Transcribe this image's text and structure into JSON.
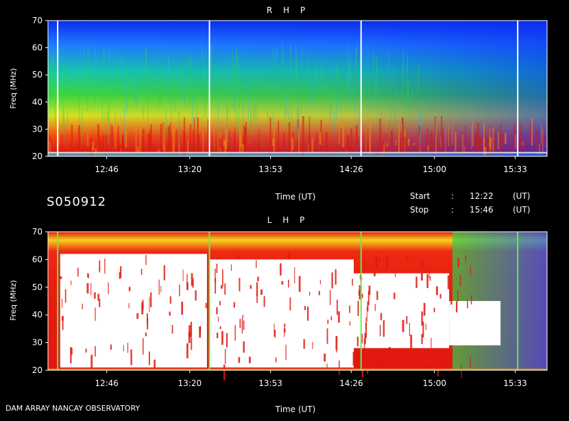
{
  "chart_data": [
    {
      "type": "heatmap",
      "title": "R H P",
      "xlabel": "Time (UT)",
      "ylabel": "Freq (MHz)",
      "x_ticks": [
        "12:46",
        "13:20",
        "13:53",
        "14:26",
        "15:00",
        "15:33"
      ],
      "x_tick_hours": [
        12.767,
        13.333,
        13.883,
        14.433,
        15.0,
        15.55
      ],
      "xlim_hours": [
        12.367,
        15.767
      ],
      "ylim": [
        20,
        70
      ],
      "y_ticks": [
        20,
        30,
        40,
        50,
        60,
        70
      ],
      "white_marker_hours": [
        12.433,
        13.467,
        14.5,
        15.567
      ],
      "colors": {
        "background": "#0033ee",
        "low": "#1a66ff",
        "mid": "#22cc66",
        "high": "#ffee22",
        "peak": "#ee2211"
      },
      "profile_bands": [
        {
          "freq": [
            66,
            70
          ],
          "level": 0.1
        },
        {
          "freq": [
            55,
            66
          ],
          "level": 0.3
        },
        {
          "freq": [
            45,
            55
          ],
          "level": 0.45
        },
        {
          "freq": [
            36,
            45
          ],
          "level": 0.6
        },
        {
          "freq": [
            22,
            36
          ],
          "level": 0.85
        }
      ]
    },
    {
      "type": "heatmap",
      "title": "L H P",
      "xlabel": "Time (UT)",
      "ylabel": "Freq (MHz)",
      "x_ticks": [
        "12:46",
        "13:20",
        "13:53",
        "14:26",
        "15:00",
        "15:33"
      ],
      "x_tick_hours": [
        12.767,
        13.333,
        13.883,
        14.433,
        15.0,
        15.55
      ],
      "xlim_hours": [
        12.367,
        15.767
      ],
      "ylim": [
        20,
        70
      ],
      "y_ticks": [
        20,
        30,
        40,
        50,
        60,
        70
      ],
      "green_marker_hours": [
        12.433,
        13.467,
        14.5,
        15.567
      ],
      "colors": {
        "background": "#0033ee",
        "low": "#1a66ff",
        "mid": "#22cc66",
        "high": "#ffee22",
        "peak": "#ee2211",
        "saturated": "#ffffff"
      },
      "saturated_regions": [
        {
          "hours": [
            12.45,
            13.45
          ],
          "freq": [
            21,
            62
          ]
        },
        {
          "hours": [
            13.47,
            14.45
          ],
          "freq": [
            21,
            60
          ]
        },
        {
          "hours": [
            14.45,
            15.1
          ],
          "freq": [
            28,
            55
          ]
        },
        {
          "hours": [
            15.1,
            15.45
          ],
          "freq": [
            29,
            45
          ]
        }
      ]
    }
  ],
  "header": {
    "session_id": "S050912",
    "start_label": "Start",
    "start_sep": ":",
    "start_time": "12:22",
    "start_unit": "(UT)",
    "stop_label": "Stop",
    "stop_sep": ":",
    "stop_time": "15:46",
    "stop_unit": "(UT)"
  },
  "footer": {
    "observatory": "DAM ARRAY  NANCAY OBSERVATORY"
  }
}
